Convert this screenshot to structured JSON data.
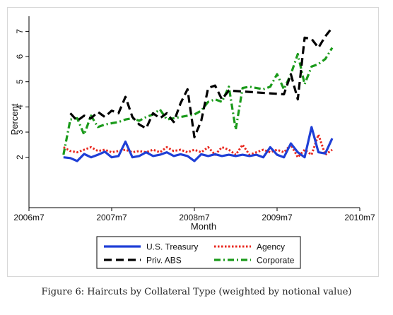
{
  "caption": "Figure 6: Haircuts by Collateral Type (weighted by notional value)",
  "chart_data": {
    "type": "line",
    "title": "",
    "xlabel": "Month",
    "ylabel": "Percent",
    "xlim": [
      2006.5,
      2010.5
    ],
    "ylim": [
      0,
      7.6
    ],
    "x_ticks": [
      {
        "value": 2006.5,
        "label": "2006m7"
      },
      {
        "value": 2007.5,
        "label": "2007m7"
      },
      {
        "value": 2008.5,
        "label": "2008m7"
      },
      {
        "value": 2009.5,
        "label": "2009m7"
      },
      {
        "value": 2010.5,
        "label": "2010m7"
      }
    ],
    "y_ticks": [
      2,
      3,
      4,
      5,
      6,
      7
    ],
    "grid": false,
    "legend": "bottom",
    "series": [
      {
        "name": "U.S. Treasury",
        "color": "#1f3fd6",
        "dash": "solid",
        "points": [
          [
            2006.917,
            2.0
          ],
          [
            2007.0,
            1.97
          ],
          [
            2007.083,
            1.85
          ],
          [
            2007.167,
            2.13
          ],
          [
            2007.25,
            2.0
          ],
          [
            2007.333,
            2.1
          ],
          [
            2007.417,
            2.22
          ],
          [
            2007.5,
            2.0
          ],
          [
            2007.583,
            2.05
          ],
          [
            2007.667,
            2.62
          ],
          [
            2007.75,
            2.0
          ],
          [
            2007.833,
            2.05
          ],
          [
            2007.917,
            2.2
          ],
          [
            2008.0,
            2.05
          ],
          [
            2008.083,
            2.1
          ],
          [
            2008.167,
            2.2
          ],
          [
            2008.25,
            2.05
          ],
          [
            2008.333,
            2.12
          ],
          [
            2008.417,
            2.05
          ],
          [
            2008.5,
            1.85
          ],
          [
            2008.583,
            2.12
          ],
          [
            2008.667,
            2.05
          ],
          [
            2008.75,
            2.12
          ],
          [
            2008.833,
            2.05
          ],
          [
            2008.917,
            2.1
          ],
          [
            2009.0,
            2.05
          ],
          [
            2009.083,
            2.1
          ],
          [
            2009.167,
            2.05
          ],
          [
            2009.25,
            2.1
          ],
          [
            2009.333,
            2.0
          ],
          [
            2009.417,
            2.4
          ],
          [
            2009.5,
            2.1
          ],
          [
            2009.583,
            2.0
          ],
          [
            2009.667,
            2.55
          ],
          [
            2009.75,
            2.2
          ],
          [
            2009.833,
            2.0
          ],
          [
            2009.917,
            3.2
          ],
          [
            2010.0,
            2.2
          ],
          [
            2010.083,
            2.15
          ],
          [
            2010.167,
            2.75
          ]
        ]
      },
      {
        "name": "Agency",
        "color": "#e8271e",
        "dash": "dot",
        "points": [
          [
            2006.917,
            2.4
          ],
          [
            2007.0,
            2.25
          ],
          [
            2007.083,
            2.2
          ],
          [
            2007.167,
            2.3
          ],
          [
            2007.25,
            2.4
          ],
          [
            2007.333,
            2.25
          ],
          [
            2007.417,
            2.3
          ],
          [
            2007.5,
            2.2
          ],
          [
            2007.583,
            2.25
          ],
          [
            2007.667,
            2.3
          ],
          [
            2007.75,
            2.2
          ],
          [
            2007.833,
            2.25
          ],
          [
            2007.917,
            2.2
          ],
          [
            2008.0,
            2.3
          ],
          [
            2008.083,
            2.2
          ],
          [
            2008.167,
            2.4
          ],
          [
            2008.25,
            2.25
          ],
          [
            2008.333,
            2.3
          ],
          [
            2008.417,
            2.2
          ],
          [
            2008.5,
            2.3
          ],
          [
            2008.583,
            2.2
          ],
          [
            2008.667,
            2.4
          ],
          [
            2008.75,
            2.1
          ],
          [
            2008.833,
            2.4
          ],
          [
            2008.917,
            2.3
          ],
          [
            2009.0,
            2.1
          ],
          [
            2009.083,
            2.5
          ],
          [
            2009.167,
            2.1
          ],
          [
            2009.25,
            2.2
          ],
          [
            2009.333,
            2.3
          ],
          [
            2009.417,
            2.2
          ],
          [
            2009.5,
            2.3
          ],
          [
            2009.583,
            2.2
          ],
          [
            2009.667,
            2.5
          ],
          [
            2009.75,
            2.0
          ],
          [
            2009.833,
            2.3
          ],
          [
            2009.917,
            2.1
          ],
          [
            2010.0,
            2.9
          ],
          [
            2010.083,
            2.1
          ],
          [
            2010.167,
            2.3
          ]
        ]
      },
      {
        "name": "Priv. ABS",
        "color": "#000000",
        "dash": "dash",
        "points": [
          [
            2007.0,
            3.75
          ],
          [
            2007.083,
            3.45
          ],
          [
            2007.167,
            3.65
          ],
          [
            2007.25,
            3.55
          ],
          [
            2007.333,
            3.8
          ],
          [
            2007.417,
            3.6
          ],
          [
            2007.5,
            3.85
          ],
          [
            2007.583,
            3.75
          ],
          [
            2007.667,
            4.4
          ],
          [
            2007.75,
            3.6
          ],
          [
            2007.833,
            3.3
          ],
          [
            2007.917,
            3.15
          ],
          [
            2008.0,
            3.75
          ],
          [
            2008.083,
            3.55
          ],
          [
            2008.167,
            3.75
          ],
          [
            2008.25,
            3.4
          ],
          [
            2008.333,
            4.15
          ],
          [
            2008.417,
            4.7
          ],
          [
            2008.5,
            2.8
          ],
          [
            2008.583,
            3.45
          ],
          [
            2008.667,
            4.75
          ],
          [
            2008.75,
            4.85
          ],
          [
            2008.833,
            4.3
          ],
          [
            2008.917,
            4.65
          ],
          [
            2009.583,
            4.5
          ],
          [
            2009.667,
            5.3
          ],
          [
            2009.75,
            4.3
          ],
          [
            2009.833,
            6.75
          ],
          [
            2009.917,
            6.7
          ],
          [
            2010.0,
            6.35
          ],
          [
            2010.083,
            6.8
          ],
          [
            2010.167,
            7.15
          ]
        ]
      },
      {
        "name": "Corporate",
        "color": "#1a9a1a",
        "dash": "dashdot",
        "points": [
          [
            2006.917,
            2.1
          ],
          [
            2007.0,
            3.5
          ],
          [
            2007.083,
            3.55
          ],
          [
            2007.167,
            2.9
          ],
          [
            2007.25,
            3.65
          ],
          [
            2007.333,
            3.2
          ],
          [
            2007.417,
            3.3
          ],
          [
            2007.5,
            3.35
          ],
          [
            2007.583,
            3.4
          ],
          [
            2007.667,
            3.5
          ],
          [
            2007.75,
            3.55
          ],
          [
            2007.833,
            3.45
          ],
          [
            2007.917,
            3.6
          ],
          [
            2008.0,
            3.7
          ],
          [
            2008.083,
            3.9
          ],
          [
            2008.167,
            3.5
          ],
          [
            2008.25,
            3.55
          ],
          [
            2008.333,
            3.6
          ],
          [
            2008.417,
            3.65
          ],
          [
            2008.5,
            3.7
          ],
          [
            2008.583,
            3.85
          ],
          [
            2008.667,
            4.2
          ],
          [
            2008.75,
            4.3
          ],
          [
            2008.833,
            4.2
          ],
          [
            2008.917,
            4.8
          ],
          [
            2009.0,
            3.1
          ],
          [
            2009.083,
            4.75
          ],
          [
            2009.167,
            4.8
          ],
          [
            2009.25,
            4.75
          ],
          [
            2009.333,
            4.7
          ],
          [
            2009.417,
            4.8
          ],
          [
            2009.5,
            5.3
          ],
          [
            2009.583,
            4.7
          ],
          [
            2009.667,
            5.3
          ],
          [
            2009.75,
            6.1
          ],
          [
            2009.833,
            4.9
          ],
          [
            2009.917,
            5.6
          ],
          [
            2010.0,
            5.7
          ],
          [
            2010.083,
            5.9
          ],
          [
            2010.167,
            6.35
          ]
        ]
      }
    ]
  }
}
